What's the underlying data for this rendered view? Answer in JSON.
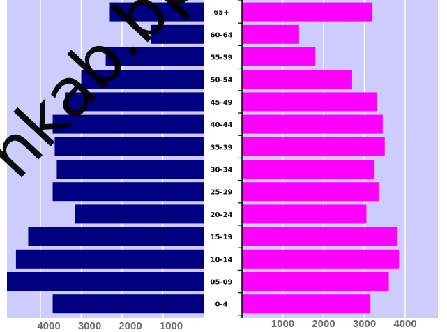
{
  "chart_data": {
    "type": "bar",
    "orientation": "horizontal",
    "layout": "population-pyramid",
    "categories": [
      "65+",
      "60-64",
      "55-59",
      "50-54",
      "45-49",
      "40-44",
      "35-39",
      "30-34",
      "25-29",
      "20-24",
      "15-19",
      "10-14",
      "05-09",
      "0-4"
    ],
    "category_labels_visible": [
      "65+",
      "60-64",
      "55-59",
      "50-54",
      "45-49",
      "40-44",
      "35-39",
      "30-34",
      "25-29",
      "20-24",
      "15-19",
      "10-14",
      "05-09",
      "0-4"
    ],
    "series": [
      {
        "side": "left",
        "color": "#000080",
        "values": [
          2300,
          1300,
          2400,
          3000,
          3400,
          3700,
          3650,
          3600,
          3700,
          3150,
          4300,
          4600,
          4900,
          3700
        ]
      },
      {
        "side": "right",
        "color": "#ff00ff",
        "values": [
          3200,
          1400,
          1800,
          2700,
          3300,
          3450,
          3500,
          3250,
          3350,
          3050,
          3800,
          3850,
          3600,
          3150
        ]
      }
    ],
    "left_ticks": [
      "4000",
      "3000",
      "2000",
      "1000"
    ],
    "right_ticks": [
      "1000",
      "2000",
      "3000",
      "4000"
    ],
    "xlim": [
      0,
      5000
    ],
    "grid": true,
    "background": "#ccccff"
  },
  "watermark": "nkab.bps.go.id"
}
